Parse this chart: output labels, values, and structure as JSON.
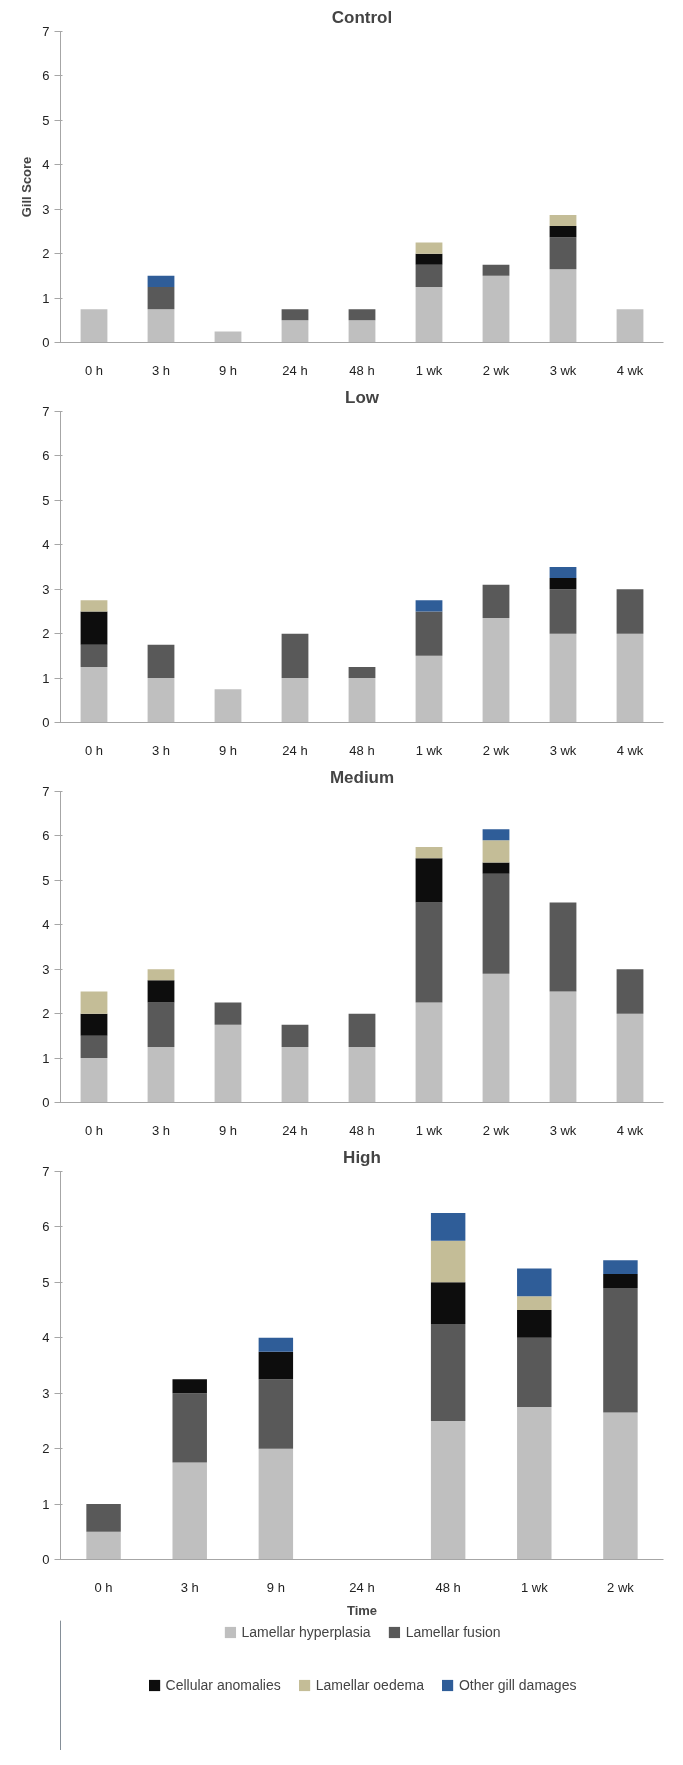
{
  "chart_data": [
    {
      "type": "bar",
      "stacked": true,
      "title": "Control",
      "ylabel": "Gill Score",
      "categories": [
        "0 h",
        "3 h",
        "9 h",
        "24 h",
        "48 h",
        "1 wk",
        "2 wk",
        "3 wk",
        "4 wk"
      ],
      "ylim": [
        0,
        7
      ],
      "yticks": [
        0,
        1,
        2,
        3,
        4,
        5,
        6,
        7
      ],
      "grid": false,
      "legend": false,
      "series": [
        {
          "color": "#bfbfbf",
          "values": [
            0.75,
            0.75,
            0.25,
            0.5,
            0.5,
            1.25,
            1.5,
            1.65,
            0.75
          ]
        },
        {
          "color": "#595959",
          "values": [
            0,
            0.5,
            0,
            0.25,
            0.25,
            0.5,
            0.25,
            0.72,
            0
          ]
        },
        {
          "color": "#0d0d0d",
          "values": [
            0,
            0,
            0,
            0,
            0,
            0.25,
            0,
            0.25,
            0
          ]
        },
        {
          "color": "#c4bd97",
          "values": [
            0,
            0,
            0,
            0,
            0,
            0.25,
            0,
            0.25,
            0
          ]
        },
        {
          "color": "#2f5d98",
          "values": [
            0,
            0.25,
            0,
            0,
            0,
            0,
            0,
            0,
            0
          ]
        }
      ]
    },
    {
      "type": "bar",
      "stacked": true,
      "title": "Low",
      "categories": [
        "0 h",
        "3 h",
        "9 h",
        "24 h",
        "48 h",
        "1 wk",
        "2 wk",
        "3 wk",
        "4 wk"
      ],
      "ylim": [
        0,
        7
      ],
      "yticks": [
        0,
        1,
        2,
        3,
        4,
        5,
        6,
        7
      ],
      "grid": false,
      "legend": false,
      "series": [
        {
          "color": "#bfbfbf",
          "values": [
            1.25,
            1,
            0.75,
            1,
            1,
            1.5,
            2.35,
            2,
            2
          ]
        },
        {
          "color": "#595959",
          "values": [
            0.5,
            0.75,
            0,
            1,
            0.25,
            1,
            0.75,
            1,
            1
          ]
        },
        {
          "color": "#0d0d0d",
          "values": [
            0.75,
            0,
            0,
            0,
            0,
            0,
            0,
            0.25,
            0
          ]
        },
        {
          "color": "#c4bd97",
          "values": [
            0.25,
            0,
            0,
            0,
            0,
            0,
            0,
            0,
            0
          ]
        },
        {
          "color": "#2f5d98",
          "values": [
            0,
            0,
            0,
            0,
            0,
            0.25,
            0,
            0.25,
            0
          ]
        }
      ]
    },
    {
      "type": "bar",
      "stacked": true,
      "title": "Medium",
      "categories": [
        "0 h",
        "3 h",
        "9 h",
        "24 h",
        "48 h",
        "1 wk",
        "2 wk",
        "3 wk",
        "4 wk"
      ],
      "ylim": [
        0,
        7
      ],
      "yticks": [
        0,
        1,
        2,
        3,
        4,
        5,
        6,
        7
      ],
      "grid": false,
      "legend": false,
      "series": [
        {
          "color": "#bfbfbf",
          "values": [
            1,
            1.25,
            1.75,
            1.25,
            1.25,
            2.25,
            2.9,
            2.5,
            2
          ]
        },
        {
          "color": "#595959",
          "values": [
            0.5,
            1,
            0.5,
            0.5,
            0.75,
            2.25,
            2.25,
            2,
            1
          ]
        },
        {
          "color": "#0d0d0d",
          "values": [
            0.5,
            0.5,
            0,
            0,
            0,
            1,
            0.25,
            0,
            0
          ]
        },
        {
          "color": "#c4bd97",
          "values": [
            0.5,
            0.25,
            0,
            0,
            0,
            0.25,
            0.5,
            0,
            0
          ]
        },
        {
          "color": "#2f5d98",
          "values": [
            0,
            0,
            0,
            0,
            0,
            0,
            0.25,
            0,
            0
          ]
        }
      ]
    },
    {
      "type": "bar",
      "stacked": true,
      "title": "High",
      "xlabel": "Time",
      "categories": [
        "0 h",
        "3 h",
        "9 h",
        "24 h",
        "48 h",
        "1 wk",
        "2 wk"
      ],
      "ylim": [
        0,
        7
      ],
      "yticks": [
        0,
        1,
        2,
        3,
        4,
        5,
        6,
        7
      ],
      "grid": false,
      "legend": "bottom",
      "series": [
        {
          "name": "Lamellar hyperplasia",
          "color": "#bfbfbf",
          "values": [
            0.5,
            1.75,
            2,
            0,
            2.5,
            2.75,
            2.65
          ]
        },
        {
          "name": "Lamellar fusion",
          "color": "#595959",
          "values": [
            0.5,
            1.25,
            1.25,
            0,
            1.75,
            1.25,
            2.25
          ]
        },
        {
          "name": "Cellular anomalies",
          "color": "#0d0d0d",
          "values": [
            0,
            0.25,
            0.5,
            0,
            0.75,
            0.5,
            0.25
          ]
        },
        {
          "name": "Lamellar oedema",
          "color": "#c4bd97",
          "values": [
            0,
            0,
            0,
            0,
            0.75,
            0.25,
            0
          ]
        },
        {
          "name": "Other gill damages",
          "color": "#2f5d98",
          "values": [
            0,
            0,
            0.25,
            0,
            0.5,
            0.5,
            0.25
          ]
        }
      ]
    }
  ]
}
